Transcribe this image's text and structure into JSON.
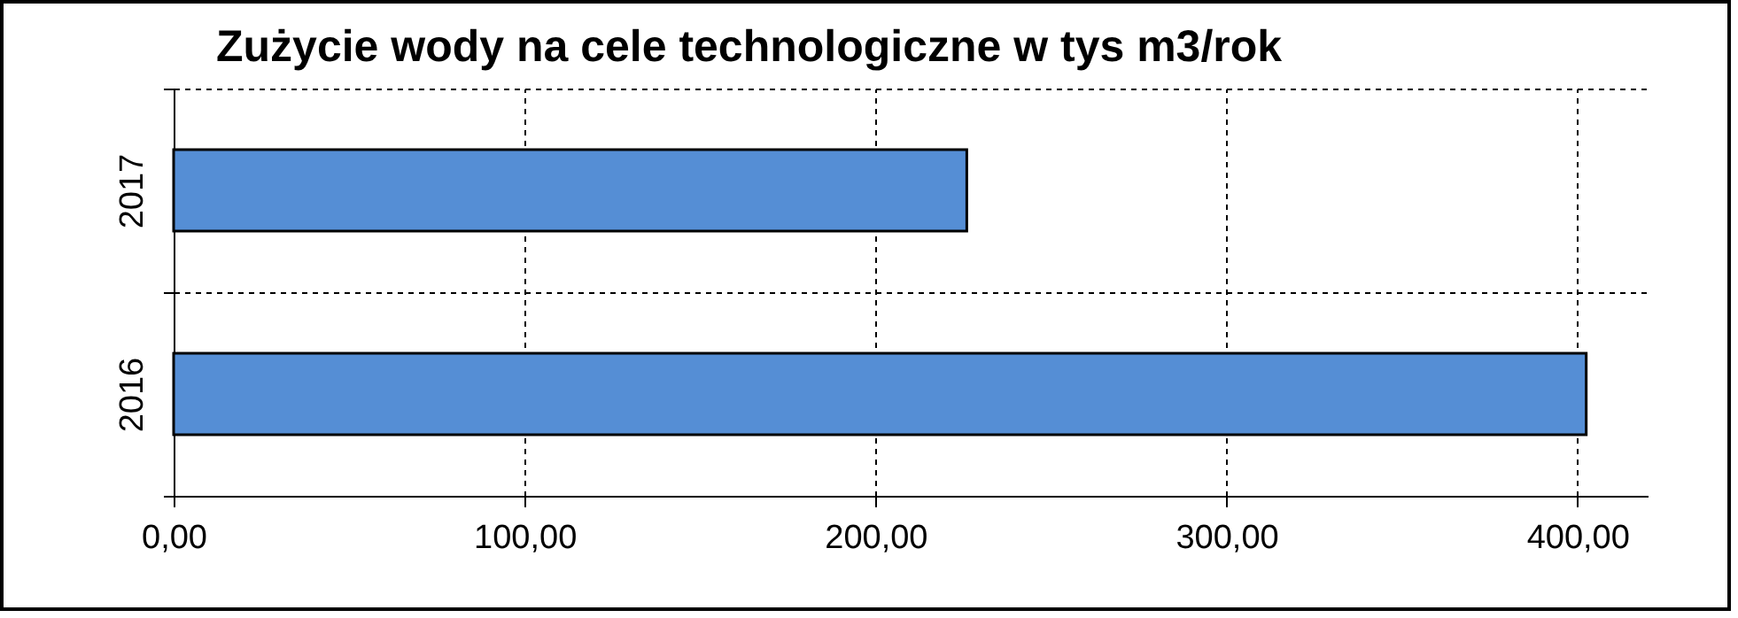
{
  "chart_data": {
    "type": "bar",
    "orientation": "horizontal",
    "title": "Zużycie wody na cele technologiczne w tys m3/rok",
    "categories": [
      "2017",
      "2016"
    ],
    "values": [
      226,
      402.5
    ],
    "color": "#558ed5",
    "xlim": [
      0,
      420
    ],
    "xticks": [
      {
        "value": 0,
        "label": "0,00"
      },
      {
        "value": 100,
        "label": "100,00"
      },
      {
        "value": 200,
        "label": "200,00"
      },
      {
        "value": 300,
        "label": "300,00"
      },
      {
        "value": 400,
        "label": "400,00"
      }
    ],
    "grid": true
  }
}
